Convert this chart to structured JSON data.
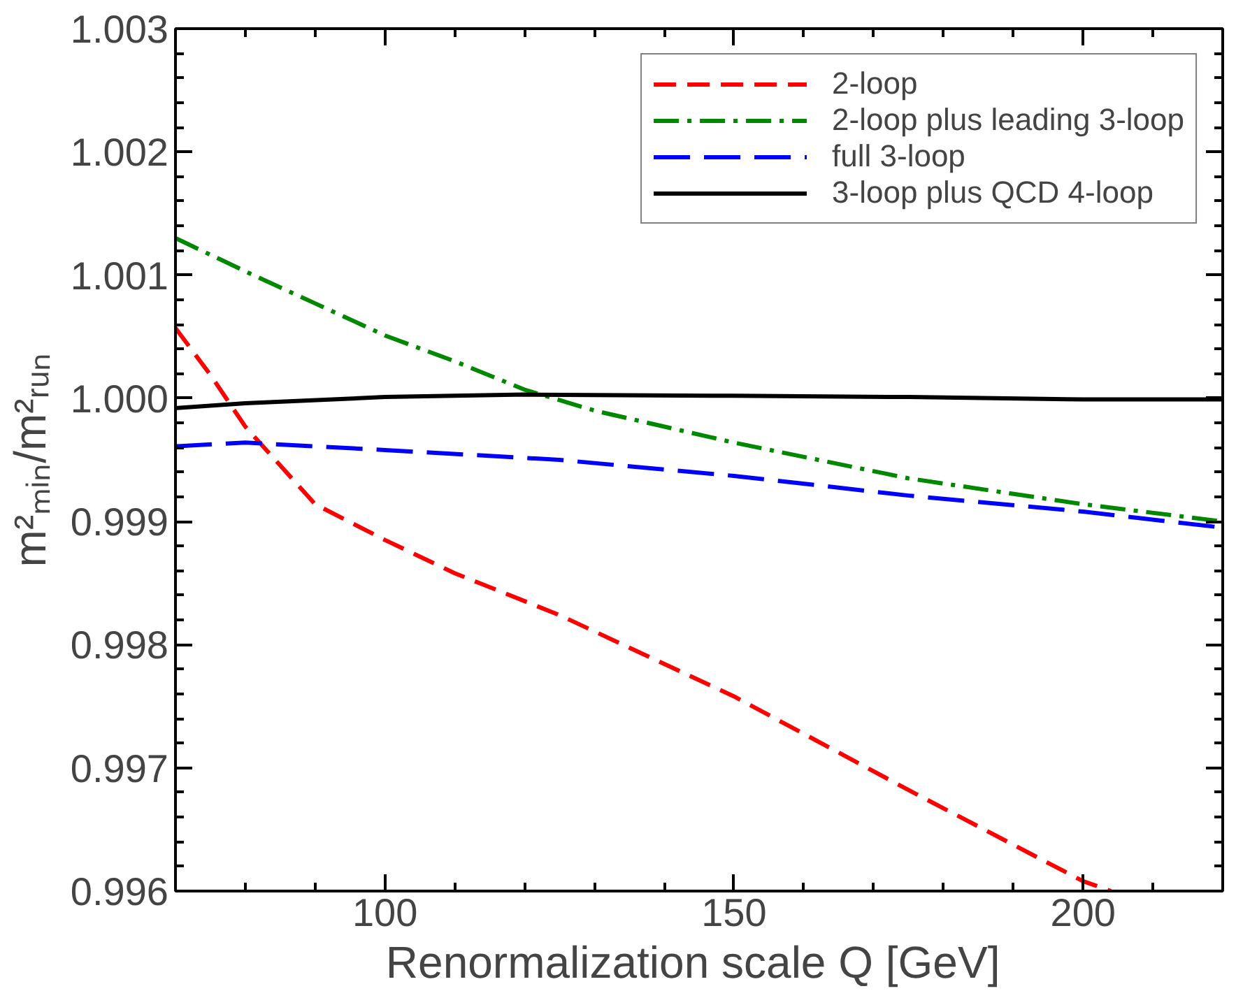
{
  "chart_data": {
    "type": "line",
    "xlabel": "Renormalization scale Q  [GeV]",
    "ylabel": "m²ₘᵢₙ/m²ᵣᵤₙ",
    "xlim": [
      70,
      220
    ],
    "xticks": [
      100,
      150,
      200
    ],
    "ylim": [
      0.996,
      1.003
    ],
    "yticks": [
      0.996,
      0.997,
      0.998,
      0.999,
      {
        "value": 1.0,
        "label": "1.000"
      },
      1.001,
      1.002,
      1.003
    ],
    "legend": "top right",
    "grid": false,
    "series": [
      {
        "name": "2-loop",
        "color": "#ff0000",
        "line_style": "dashed",
        "x": [
          70,
          75,
          80,
          90,
          100,
          110,
          125,
          150,
          175,
          200,
          204
        ],
        "values": [
          1.00057,
          1.00019,
          0.99977,
          0.99914,
          0.99885,
          0.99858,
          0.99824,
          0.99758,
          0.99682,
          0.99608,
          0.996
        ]
      },
      {
        "name": "2-loop plus leading 3-loop",
        "color": "#008800",
        "line_style": "dashdot",
        "x": [
          70,
          80,
          90,
          100,
          110,
          120,
          130,
          150,
          175,
          200,
          220
        ],
        "values": [
          1.0013,
          1.00103,
          1.00077,
          1.00051,
          1.0003,
          1.00007,
          0.9999,
          0.99964,
          0.99935,
          0.99914,
          0.999
        ]
      },
      {
        "name": "full 3-loop",
        "color": "#0000ff",
        "line_style": "longdash",
        "x": [
          70,
          80,
          100,
          125,
          150,
          175,
          200,
          220
        ],
        "values": [
          0.99961,
          0.99964,
          0.99958,
          0.9995,
          0.99937,
          0.99921,
          0.99908,
          0.99895
        ]
      },
      {
        "name": "3-loop plus QCD 4-loop",
        "color": "#000000",
        "line_style": "solid",
        "x": [
          70,
          80,
          100,
          120,
          150,
          175,
          200,
          220
        ],
        "values": [
          0.99992,
          0.99996,
          1.00001,
          1.00003,
          1.00002,
          1.00001,
          0.99999,
          0.99999
        ]
      }
    ]
  }
}
